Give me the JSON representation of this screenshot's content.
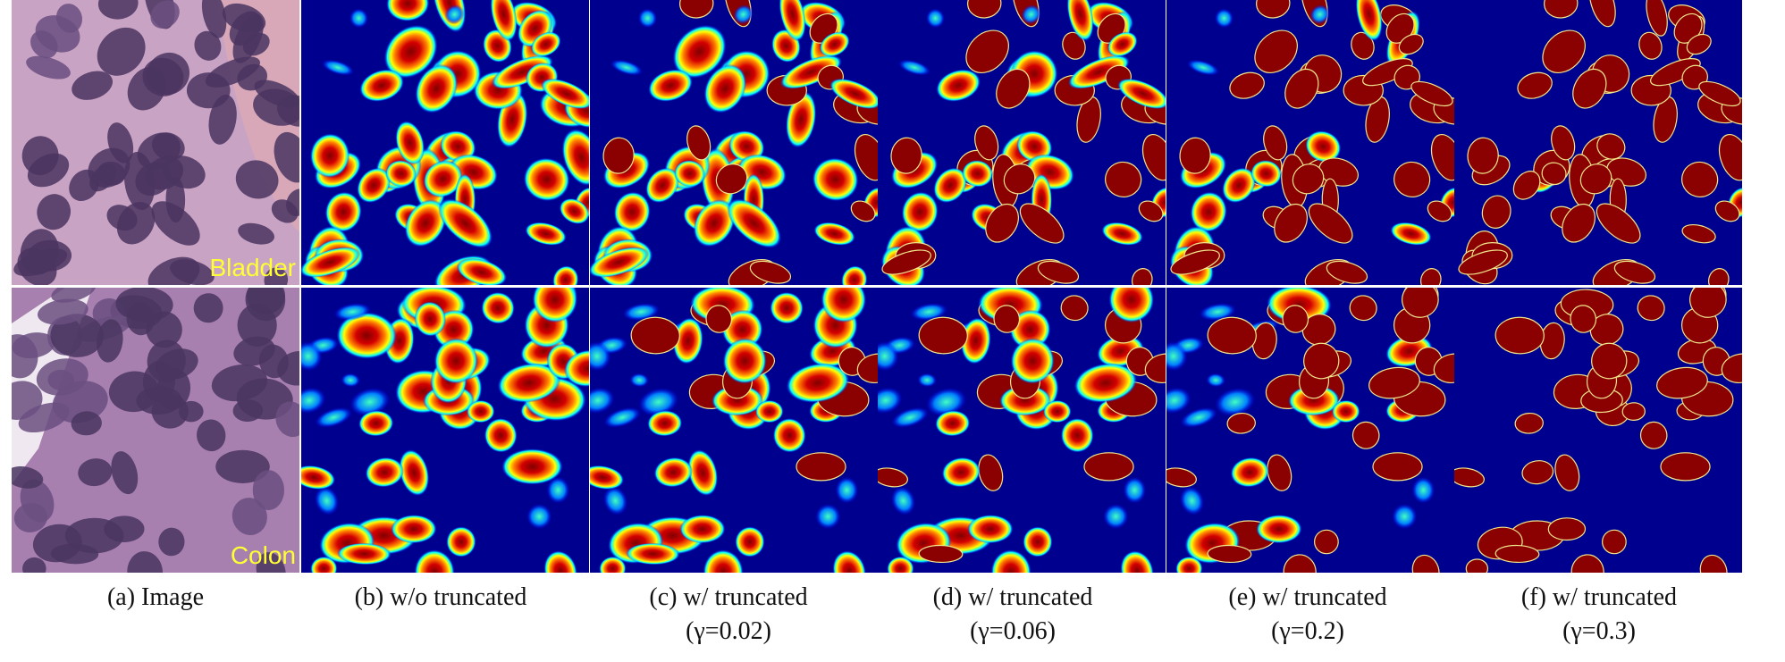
{
  "panels": [
    {
      "caption": "(a) Image"
    },
    {
      "caption": "(b) w/o truncated"
    },
    {
      "caption": "(c) w/ truncated",
      "parameter": "(γ=0.02)"
    },
    {
      "caption": "(d) w/ truncated",
      "parameter": "(γ=0.06)"
    },
    {
      "caption": "(e) w/ truncated",
      "parameter": "(γ=0.2)"
    },
    {
      "caption": "(f) w/ truncated",
      "parameter": "(γ=0.3)"
    }
  ],
  "rows": [
    {
      "label": "Bladder"
    },
    {
      "label": "Colon"
    }
  ]
}
